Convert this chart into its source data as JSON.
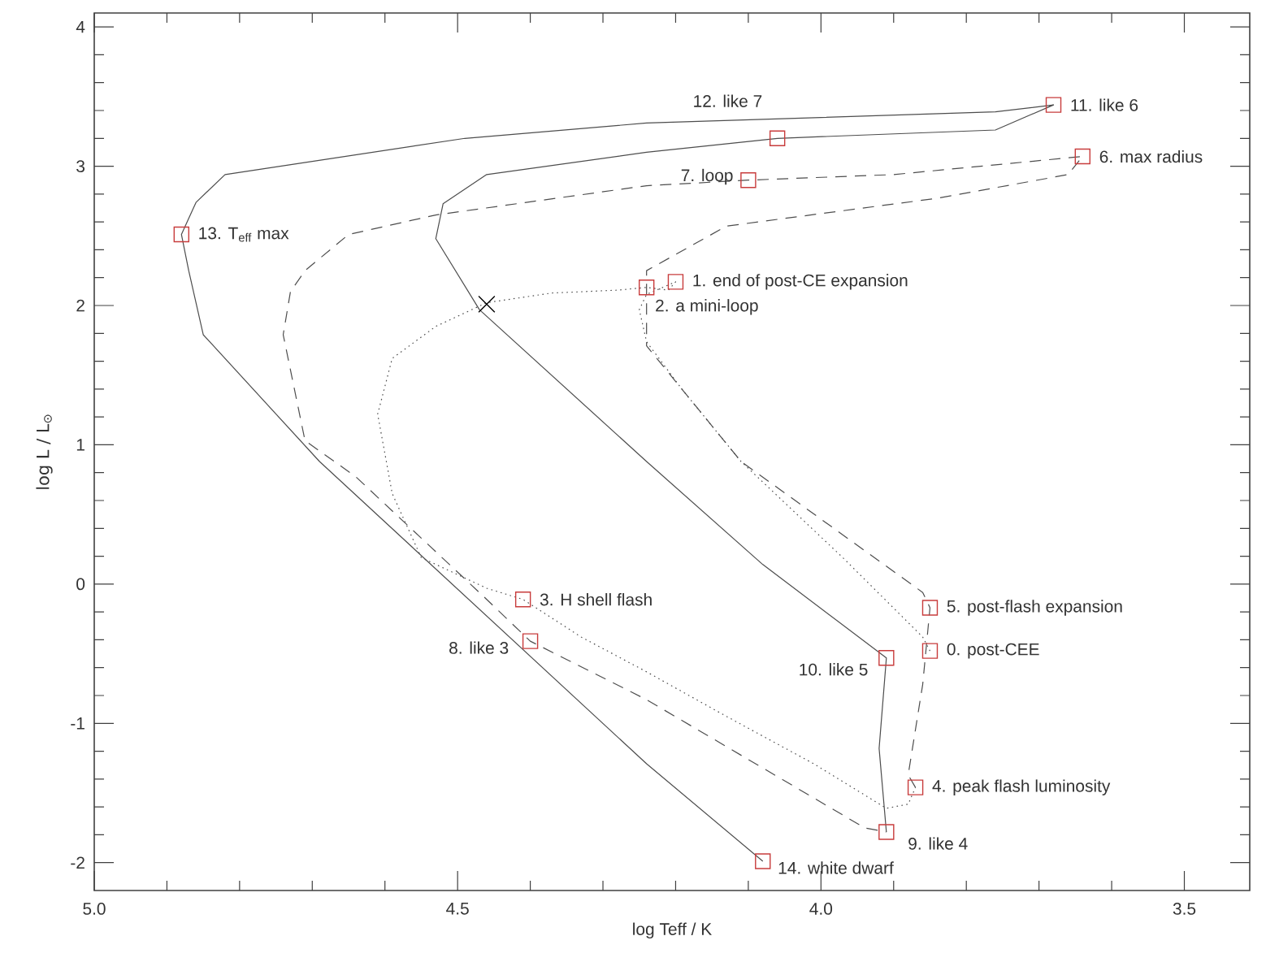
{
  "chart_data": {
    "type": "line",
    "xlabel": "log Teff / K",
    "ylabel": "log L / L$_{⊙}$",
    "xlim": [
      5.0,
      3.41
    ],
    "ylim": [
      -2.2,
      4.1
    ],
    "xticks": [
      {
        "value": 5.0,
        "label": "5.0"
      },
      {
        "value": 4.5,
        "label": "4.5"
      },
      {
        "value": 4.0,
        "label": "4.0"
      },
      {
        "value": 3.5,
        "label": "3.5"
      }
    ],
    "yticks": [
      -2,
      -1,
      0,
      1,
      2,
      3,
      4
    ],
    "series": [
      {
        "line_style": "dotted",
        "color": "#4d4d4d",
        "x": [
          3.85,
          3.86,
          3.97,
          4.11,
          4.19,
          4.24,
          4.25,
          4.24,
          4.2,
          4.21,
          4.24,
          4.28,
          4.37,
          4.46,
          4.53,
          4.59,
          4.61,
          4.59,
          4.55,
          4.46,
          4.41,
          4.33,
          4.24,
          4.13,
          4.01,
          3.91,
          3.88,
          3.87
        ],
        "values": [
          -0.48,
          -0.38,
          0.19,
          0.88,
          1.39,
          1.74,
          1.97,
          2.08,
          2.17,
          2.11,
          2.13,
          2.11,
          2.09,
          2.02,
          1.85,
          1.62,
          1.22,
          0.65,
          0.19,
          -0.03,
          -0.11,
          -0.38,
          -0.63,
          -0.95,
          -1.29,
          -1.61,
          -1.58,
          -1.46
        ]
      },
      {
        "line_style": "dashed",
        "color": "#4d4d4d",
        "x": [
          3.87,
          3.88,
          3.86,
          3.85,
          3.86,
          4.11,
          4.24,
          4.24,
          4.13,
          3.84,
          3.66,
          3.64,
          3.9,
          4.1,
          4.24,
          4.53,
          4.65,
          4.71,
          4.73,
          4.74,
          4.71,
          4.64,
          4.46,
          4.4,
          4.24,
          3.94,
          3.91
        ],
        "values": [
          -1.46,
          -1.37,
          -0.72,
          -0.17,
          -0.06,
          0.88,
          1.71,
          2.25,
          2.57,
          2.77,
          2.94,
          3.07,
          2.94,
          2.9,
          2.86,
          2.65,
          2.51,
          2.25,
          2.1,
          1.79,
          1.03,
          0.77,
          -0.11,
          -0.41,
          -0.83,
          -1.75,
          -1.78
        ]
      },
      {
        "line_style": "solid",
        "color": "#4d4d4d",
        "x": [
          3.91,
          3.92,
          3.91,
          4.08,
          4.24,
          4.47,
          4.53,
          4.52,
          4.46,
          4.24,
          4.06,
          3.76,
          3.68,
          3.76,
          4.24,
          4.49,
          4.82,
          4.86,
          4.88,
          4.87,
          4.85,
          4.69,
          4.24,
          4.08
        ],
        "values": [
          -1.78,
          -1.18,
          -0.53,
          0.14,
          0.88,
          1.97,
          2.48,
          2.73,
          2.94,
          3.1,
          3.2,
          3.26,
          3.44,
          3.39,
          3.31,
          3.2,
          2.94,
          2.74,
          2.51,
          2.25,
          1.79,
          0.88,
          -1.29,
          -1.99
        ]
      },
      {
        "type": "scatter",
        "marker": "square",
        "color": "#c83c3c",
        "x": [
          3.85,
          4.2,
          4.24,
          4.41,
          3.87,
          3.85,
          3.64,
          4.1,
          4.4,
          3.91,
          3.91,
          3.68,
          4.06,
          4.88,
          4.08
        ],
        "values": [
          -0.48,
          2.17,
          2.13,
          -0.11,
          -1.46,
          -0.17,
          3.07,
          2.9,
          -0.41,
          -1.78,
          -0.53,
          3.44,
          3.2,
          2.51,
          -1.99
        ]
      },
      {
        "type": "scatter",
        "marker": "cross",
        "color": "#000000",
        "x": [
          4.46
        ],
        "values": [
          2.01
        ]
      }
    ],
    "annotations": [
      {
        "text": "0. post-CEE",
        "x": 3.85,
        "y": -0.48
      },
      {
        "text": "1. end of post-CE expansion",
        "x": 4.2,
        "y": 2.17
      },
      {
        "text": "2. a mini-loop",
        "x": 4.24,
        "y": 2.13
      },
      {
        "text": "3. H shell flash",
        "x": 4.41,
        "y": -0.11
      },
      {
        "text": "4. peak flash luminosity",
        "x": 3.87,
        "y": -1.46
      },
      {
        "text": "5. post-flash expansion",
        "x": 3.85,
        "y": -0.17
      },
      {
        "text": "6. max radius",
        "x": 3.64,
        "y": 3.07
      },
      {
        "text": "7. loop",
        "x": 4.1,
        "y": 2.9
      },
      {
        "text": "8. like 3",
        "x": 4.4,
        "y": -0.41
      },
      {
        "text": "9. like 4",
        "x": 3.91,
        "y": -1.78
      },
      {
        "text": "10. like 5",
        "x": 3.91,
        "y": -0.53
      },
      {
        "text": "11. like 6",
        "x": 3.68,
        "y": 3.44
      },
      {
        "text": "12. like 7",
        "x": 4.06,
        "y": 3.2
      },
      {
        "text": "13. T$_{eff}$ max",
        "x": 4.88,
        "y": 2.51
      },
      {
        "text": "14. white dwarf",
        "x": 4.08,
        "y": -1.99
      }
    ]
  }
}
